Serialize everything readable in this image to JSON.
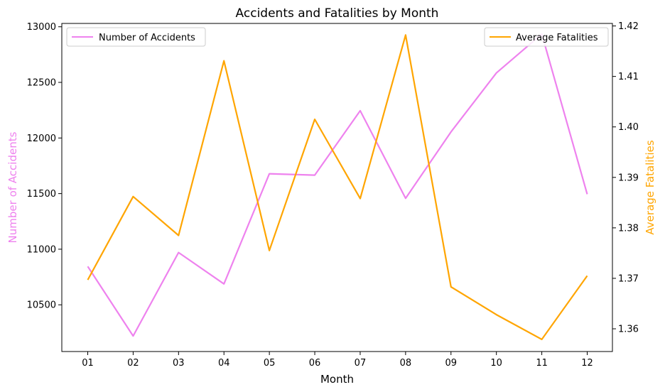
{
  "chart_data": {
    "type": "line",
    "title": "Accidents and Fatalities by Month",
    "xlabel": "Month",
    "categories": [
      "01",
      "02",
      "03",
      "04",
      "05",
      "06",
      "07",
      "08",
      "09",
      "10",
      "11",
      "12"
    ],
    "left_axis": {
      "label": "Number of Accidents",
      "color": "#ee82ee",
      "ylim": [
        10080,
        13030
      ],
      "ticks": [
        "10500",
        "11000",
        "11500",
        "12000",
        "12500",
        "13000"
      ]
    },
    "right_axis": {
      "label": "Average Fatalities",
      "color": "#ffa500",
      "ylim": [
        1.3555,
        1.4205
      ],
      "ticks": [
        "1.36",
        "1.37",
        "1.38",
        "1.39",
        "1.40",
        "1.41",
        "1.42"
      ]
    },
    "series": [
      {
        "name": "Number of Accidents",
        "axis": "left",
        "color": "#ee82ee",
        "values": [
          10845,
          10220,
          10970,
          10688,
          11678,
          11666,
          12245,
          11458,
          12055,
          12585,
          12935,
          11495
        ]
      },
      {
        "name": "Average Fatalities",
        "axis": "right",
        "color": "#ffa500",
        "values": [
          1.3697,
          1.3862,
          1.3785,
          1.4131,
          1.3755,
          1.4015,
          1.3858,
          1.4182,
          1.3683,
          1.3628,
          1.3579,
          1.3705
        ]
      }
    ],
    "legends": [
      {
        "series": "Number of Accidents",
        "placement": "top-left"
      },
      {
        "series": "Average Fatalities",
        "placement": "top-right"
      }
    ],
    "grid": false
  }
}
